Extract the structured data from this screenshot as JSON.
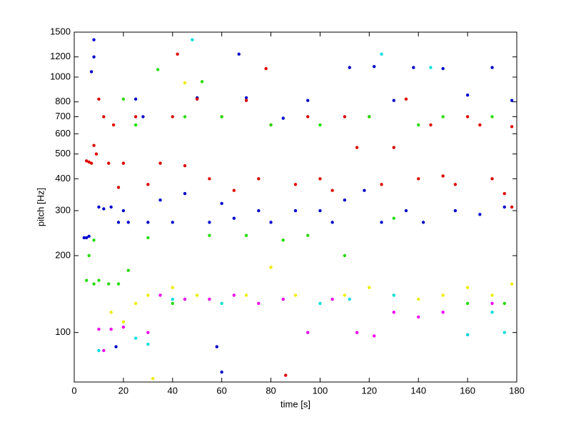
{
  "chart_data": {
    "type": "scatter",
    "xlabel": "time [s]",
    "ylabel": "pitch [Hz]",
    "xlim": [
      0,
      180
    ],
    "xticks": [
      0,
      20,
      40,
      60,
      80,
      100,
      120,
      140,
      160,
      180
    ],
    "ylim": [
      64,
      1500
    ],
    "yticks": [
      100,
      200,
      300,
      400,
      500,
      600,
      700,
      800,
      1000,
      1200,
      1500
    ],
    "log_y": true,
    "grid": false,
    "series": [
      {
        "color": "#0000cc",
        "x": [
          4,
          5,
          6,
          7,
          8,
          8,
          10,
          12,
          15,
          18,
          20,
          22,
          25,
          28,
          30,
          35,
          40,
          45,
          50,
          55,
          60,
          65,
          70,
          75,
          80,
          85,
          90,
          95,
          100,
          105,
          110,
          112,
          118,
          122,
          125,
          130,
          135,
          138,
          142,
          150,
          155,
          160,
          165,
          170,
          175,
          178,
          67,
          17,
          58,
          60
        ],
        "values": [
          235,
          235,
          238,
          1050,
          1400,
          1200,
          310,
          305,
          310,
          270,
          300,
          270,
          820,
          700,
          270,
          330,
          270,
          350,
          830,
          270,
          320,
          280,
          830,
          300,
          270,
          690,
          300,
          810,
          300,
          270,
          330,
          1090,
          360,
          1100,
          270,
          810,
          300,
          1090,
          270,
          1080,
          300,
          850,
          290,
          1090,
          310,
          810,
          1230,
          88,
          88,
          70
        ]
      },
      {
        "color": "#dd0000",
        "x": [
          5,
          6,
          7,
          8,
          9,
          10,
          12,
          14,
          16,
          18,
          20,
          25,
          30,
          35,
          40,
          45,
          50,
          55,
          60,
          65,
          70,
          75,
          78,
          80,
          86,
          90,
          95,
          100,
          105,
          110,
          115,
          120,
          125,
          130,
          135,
          140,
          145,
          150,
          155,
          160,
          165,
          170,
          175,
          178,
          178,
          42
        ],
        "values": [
          470,
          465,
          460,
          540,
          500,
          820,
          700,
          460,
          650,
          370,
          460,
          700,
          380,
          460,
          700,
          450,
          820,
          400,
          700,
          360,
          810,
          400,
          1080,
          650,
          68,
          380,
          700,
          400,
          360,
          700,
          530,
          700,
          380,
          530,
          820,
          400,
          650,
          410,
          380,
          700,
          650,
          400,
          350,
          640,
          310,
          1230
        ]
      },
      {
        "color": "#22dd00",
        "x": [
          5,
          8,
          10,
          14,
          18,
          22,
          20,
          25,
          30,
          34,
          40,
          45,
          52,
          55,
          60,
          70,
          80,
          85,
          95,
          100,
          110,
          120,
          130,
          140,
          150,
          160,
          170,
          175,
          6,
          8
        ],
        "values": [
          160,
          155,
          160,
          155,
          155,
          175,
          820,
          650,
          235,
          1070,
          130,
          700,
          960,
          240,
          700,
          240,
          650,
          230,
          240,
          650,
          200,
          700,
          280,
          650,
          700,
          130,
          700,
          130,
          200,
          230
        ]
      },
      {
        "color": "#eeee00",
        "x": [
          15,
          20,
          25,
          30,
          32,
          40,
          45,
          50,
          60,
          70,
          80,
          90,
          100,
          110,
          120,
          130,
          140,
          150,
          160,
          170,
          178
        ],
        "values": [
          120,
          110,
          130,
          140,
          66,
          150,
          950,
          140,
          130,
          140,
          180,
          140,
          130,
          140,
          150,
          140,
          135,
          140,
          150,
          140,
          155
        ]
      },
      {
        "color": "#ee00ee",
        "x": [
          10,
          12,
          15,
          20,
          30,
          35,
          45,
          55,
          65,
          75,
          85,
          95,
          105,
          115,
          122,
          130,
          140,
          150,
          160,
          170
        ],
        "values": [
          103,
          85,
          103,
          105,
          100,
          140,
          135,
          135,
          140,
          130,
          135,
          100,
          135,
          100,
          97,
          120,
          115,
          120,
          98,
          130
        ]
      },
      {
        "color": "#00dddd",
        "x": [
          10,
          25,
          30,
          40,
          48,
          60,
          100,
          112,
          125,
          130,
          145,
          160,
          170,
          175
        ],
        "values": [
          85,
          95,
          90,
          135,
          1400,
          130,
          130,
          135,
          1230,
          140,
          1090,
          98,
          120,
          100
        ]
      }
    ]
  }
}
